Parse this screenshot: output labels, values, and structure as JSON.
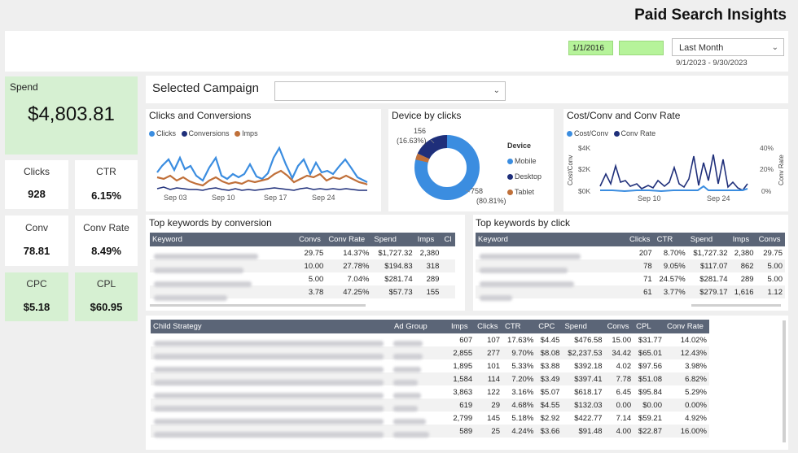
{
  "header": {
    "title": "Paid Search Insights",
    "date_start": "1/1/2016",
    "date_end": "",
    "period_select": "Last Month",
    "period_range": "9/1/2023 - 9/30/2023"
  },
  "campaign": {
    "label": "Selected Campaign",
    "value": ""
  },
  "kpis": {
    "spend": {
      "label": "Spend",
      "value": "$4,803.81"
    },
    "clicks": {
      "label": "Clicks",
      "value": "928"
    },
    "ctr": {
      "label": "CTR",
      "value": "6.15%"
    },
    "conv": {
      "label": "Conv",
      "value": "78.81"
    },
    "conv_rate": {
      "label": "Conv Rate",
      "value": "8.49%"
    },
    "cpc": {
      "label": "CPC",
      "value": "$5.18"
    },
    "cpl": {
      "label": "CPL",
      "value": "$60.95"
    }
  },
  "clicks_conv": {
    "title": "Clicks and Conversions",
    "legend": [
      "Clicks",
      "Conversions",
      "Imps"
    ],
    "x_ticks": [
      "Sep 03",
      "Sep 10",
      "Sep 17",
      "Sep 24"
    ]
  },
  "device": {
    "title": "Device by clicks",
    "legend_title": "Device",
    "legend": [
      "Mobile",
      "Desktop",
      "Tablet"
    ],
    "label_small_value": "156",
    "label_small_pct": "(16.63%)",
    "label_big_value": "758",
    "label_big_pct": "(80.81%)"
  },
  "cost_conv": {
    "title": "Cost/Conv and Conv Rate",
    "legend": [
      "Cost/Conv",
      "Conv Rate"
    ],
    "y_left_label": "Cost/Conv",
    "y_right_label": "Conv Rate",
    "y_left_ticks": [
      "$4K",
      "$2K",
      "$0K"
    ],
    "y_right_ticks": [
      "40%",
      "20%",
      "0%"
    ],
    "x_ticks": [
      "Sep 10",
      "Sep 24"
    ]
  },
  "kw_conv": {
    "title": "Top keywords by conversion",
    "columns": [
      "Keyword",
      "Convs",
      "Conv Rate",
      "Spend",
      "Imps",
      "Cl"
    ],
    "rows": [
      [
        "",
        "29.75",
        "14.37%",
        "$1,727.32",
        "2,380"
      ],
      [
        "",
        "10.00",
        "27.78%",
        "$194.83",
        "318"
      ],
      [
        "",
        "5.00",
        "7.04%",
        "$281.74",
        "289"
      ],
      [
        "",
        "3.78",
        "47.25%",
        "$57.73",
        "155"
      ]
    ]
  },
  "kw_click": {
    "title": "Top keywords by click",
    "columns": [
      "Keyword",
      "Clicks",
      "CTR",
      "Spend",
      "Imps",
      "Convs"
    ],
    "rows": [
      [
        "",
        "207",
        "8.70%",
        "$1,727.32",
        "2,380",
        "29.75"
      ],
      [
        "",
        "78",
        "9.05%",
        "$117.07",
        "862",
        "5.00"
      ],
      [
        "",
        "71",
        "24.57%",
        "$281.74",
        "289",
        "5.00"
      ],
      [
        "",
        "61",
        "3.77%",
        "$279.17",
        "1,616",
        "1.12"
      ]
    ]
  },
  "strategy": {
    "columns": [
      "Child Strategy",
      "Ad Group",
      "Imps",
      "Clicks",
      "CTR",
      "CPC",
      "Spend",
      "Convs",
      "CPL",
      "Conv Rate"
    ],
    "rows": [
      [
        "",
        "",
        "607",
        "107",
        "17.63%",
        "$4.45",
        "$476.58",
        "15.00",
        "$31.77",
        "14.02%"
      ],
      [
        "",
        "",
        "2,855",
        "277",
        "9.70%",
        "$8.08",
        "$2,237.53",
        "34.42",
        "$65.01",
        "12.43%"
      ],
      [
        "",
        "",
        "1,895",
        "101",
        "5.33%",
        "$3.88",
        "$392.18",
        "4.02",
        "$97.56",
        "3.98%"
      ],
      [
        "",
        "",
        "1,584",
        "114",
        "7.20%",
        "$3.49",
        "$397.41",
        "7.78",
        "$51.08",
        "6.82%"
      ],
      [
        "",
        "",
        "3,863",
        "122",
        "3.16%",
        "$5.07",
        "$618.17",
        "6.45",
        "$95.84",
        "5.29%"
      ],
      [
        "",
        "",
        "619",
        "29",
        "4.68%",
        "$4.55",
        "$132.03",
        "0.00",
        "$0.00",
        "0.00%"
      ],
      [
        "",
        "",
        "2,799",
        "145",
        "5.18%",
        "$2.92",
        "$422.77",
        "7.14",
        "$59.21",
        "4.92%"
      ],
      [
        "",
        "",
        "589",
        "25",
        "4.24%",
        "$3.66",
        "$91.48",
        "4.00",
        "$22.87",
        "16.00%"
      ]
    ]
  },
  "colors": {
    "clicks": "#3b8de0",
    "conversions": "#1f2f7a",
    "imps": "#c0703a",
    "mobile": "#3b8de0",
    "desktop": "#1f2f7a",
    "tablet": "#c0703a",
    "green": "#d6f0d2"
  }
}
